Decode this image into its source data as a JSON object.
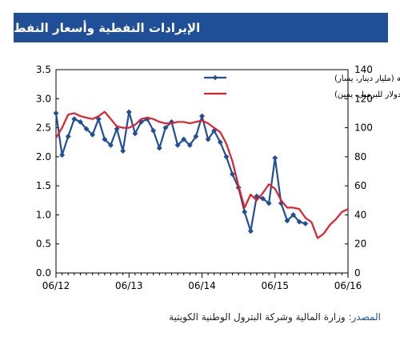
{
  "page": {
    "title": "الإيرادات النفطية وأسعار النفط",
    "source_label": "المصدر:",
    "source_text": " وزارة المالية وشركة البترول الوطنية الكويتية",
    "colors": {
      "banner": "#1f4f96",
      "revenue": "#1f4f96",
      "price": "#e0202a"
    }
  },
  "chart_data": {
    "type": "line",
    "title": "الإيرادات النفطية وأسعار النفط",
    "xlabel": "",
    "ylabel": "",
    "x_ticks": [
      "06/12",
      "06/13",
      "06/14",
      "06/15",
      "06/16"
    ],
    "y_left_ticks": [
      "0.0",
      "0.5",
      "1.0",
      "1.5",
      "2.0",
      "2.5",
      "3.0",
      "3.5"
    ],
    "y_right_ticks": [
      "0",
      "20",
      "40",
      "60",
      "80",
      "100",
      "120",
      "140"
    ],
    "y_left_lim": [
      0,
      3.5
    ],
    "y_right_lim": [
      0,
      140
    ],
    "x_lim": [
      0,
      48
    ],
    "legend_position": "top-right",
    "grid": false,
    "series": [
      {
        "name": "الإيرادات النفطية (مليار دينار، يسار)",
        "axis": "left",
        "marker": "diamond",
        "x": [
          0,
          1,
          2,
          3,
          4,
          5,
          6,
          7,
          8,
          9,
          10,
          11,
          12,
          13,
          14,
          15,
          16,
          17,
          18,
          19,
          20,
          21,
          22,
          23,
          24,
          25,
          26,
          27,
          28,
          29,
          30,
          31,
          32,
          33,
          34,
          35,
          36,
          37,
          38,
          39,
          40,
          41
        ],
        "values": [
          2.75,
          2.03,
          2.35,
          2.65,
          2.6,
          2.48,
          2.38,
          2.65,
          2.3,
          2.2,
          2.48,
          2.1,
          2.77,
          2.4,
          2.6,
          2.65,
          2.45,
          2.15,
          2.5,
          2.6,
          2.2,
          2.3,
          2.2,
          2.35,
          2.7,
          2.3,
          2.45,
          2.25,
          2.0,
          1.7,
          1.47,
          1.05,
          0.72,
          1.32,
          1.28,
          1.2,
          1.98,
          1.2,
          0.9,
          1.0,
          0.88,
          0.85
        ]
      },
      {
        "name": "سعر نفط الكويت (دولار للبرميل، يمين)",
        "axis": "right",
        "marker": "none",
        "x": [
          0,
          1,
          2,
          3,
          4,
          5,
          6,
          7,
          8,
          9,
          10,
          11,
          12,
          13,
          14,
          15,
          16,
          17,
          18,
          19,
          20,
          21,
          22,
          23,
          24,
          25,
          26,
          27,
          28,
          29,
          30,
          31,
          32,
          33,
          34,
          35,
          36,
          37,
          38,
          39,
          40,
          41,
          42,
          43,
          44,
          45,
          46,
          47,
          48
        ],
        "values": [
          93,
          100,
          109,
          110,
          108,
          107,
          106,
          108,
          111,
          106,
          101,
          100,
          100,
          102,
          106,
          107,
          106,
          104,
          103,
          103,
          104,
          104,
          103,
          104,
          105,
          103,
          100,
          97,
          89,
          77,
          60,
          45,
          54,
          50,
          55,
          61,
          58,
          50,
          45,
          45,
          44,
          38,
          35,
          24,
          27,
          33,
          37,
          42,
          44
        ]
      }
    ]
  }
}
